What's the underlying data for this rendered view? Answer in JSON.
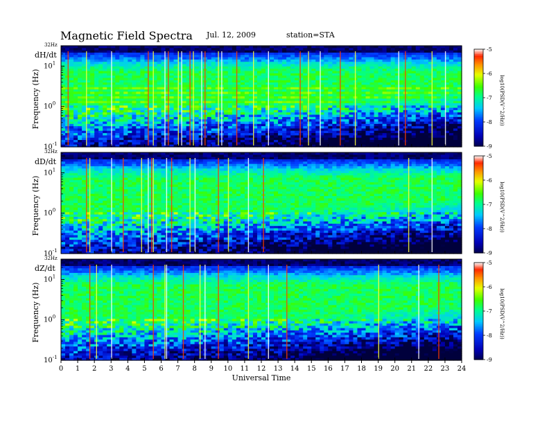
{
  "header": {
    "title": "Magnetic Field Spectra",
    "date": "Jul. 12, 2009",
    "station": "station=STA"
  },
  "chart_data": [
    {
      "type": "heatmap",
      "panel_label": "dH/dt",
      "ylabel": "Frequency (Hz)",
      "ylim_hz": [
        0.1,
        32
      ],
      "y_scale": "log",
      "top_tick": "32Hz",
      "xlim": [
        0,
        24
      ],
      "colorbar_label": "log10(PSD(V^2/Hz))",
      "colorbar_range": [
        -9,
        -5
      ]
    },
    {
      "type": "heatmap",
      "panel_label": "dD/dt",
      "ylabel": "Frequency (Hz)",
      "ylim_hz": [
        0.1,
        32
      ],
      "y_scale": "log",
      "top_tick": "32Hz",
      "xlim": [
        0,
        24
      ],
      "colorbar_label": "log10(PSD(V^2/Hz))",
      "colorbar_range": [
        -9,
        -5
      ]
    },
    {
      "type": "heatmap",
      "panel_label": "dZ/dt",
      "ylabel": "Frequency (Hz)",
      "ylim_hz": [
        0.1,
        32
      ],
      "y_scale": "log",
      "top_tick": "32Hz",
      "xlim": [
        0,
        24
      ],
      "xlabel": "Universal Time",
      "colorbar_label": "log10(PSD(V^2/Hz))",
      "colorbar_range": [
        -9,
        -5
      ]
    }
  ],
  "axes": {
    "y_ticks": [
      {
        "base": "10",
        "exp": "1",
        "value": 10
      },
      {
        "base": "10",
        "exp": "0",
        "value": 1
      },
      {
        "base": "10",
        "exp": "-1",
        "value": 0.1
      }
    ],
    "x_ticks": [
      "0",
      "1",
      "2",
      "3",
      "4",
      "5",
      "6",
      "7",
      "8",
      "9",
      "10",
      "11",
      "12",
      "13",
      "14",
      "15",
      "16",
      "17",
      "18",
      "19",
      "20",
      "21",
      "22",
      "23",
      "24"
    ],
    "colorbar_ticks": [
      "-5",
      "-6",
      "-7",
      "-8",
      "-9"
    ]
  }
}
